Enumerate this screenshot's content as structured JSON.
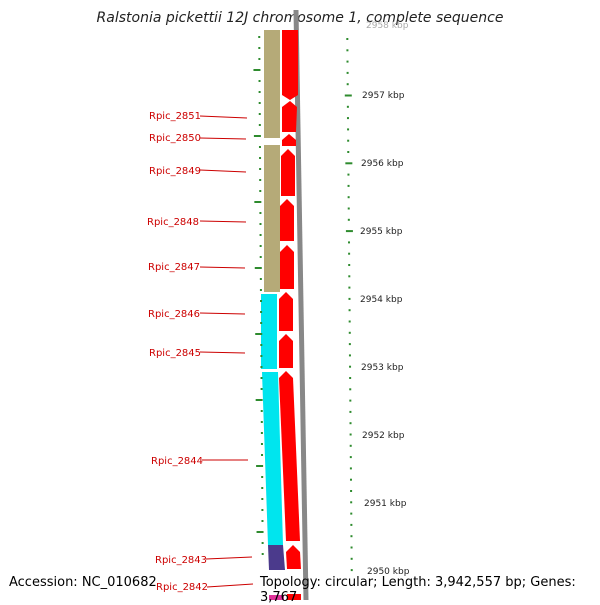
{
  "title": "Ralstonia pickettii 12J chromosome 1, complete sequence",
  "footer": {
    "accession": "Accession: NC_010682",
    "summary": "Topology: circular; Length: 3,942,557 bp; Genes: 3,767"
  },
  "ruler": {
    "unit": "kbp",
    "ticks": [
      "2958 kbp",
      "2957 kbp",
      "2956 kbp",
      "2955 kbp",
      "2954 kbp",
      "2953 kbp",
      "2952 kbp",
      "2951 kbp",
      "2950 kbp"
    ]
  },
  "genes": [
    {
      "label": "Rpic_2851",
      "category_color": "#b5aa78"
    },
    {
      "label": "Rpic_2850",
      "category_color": "#b5aa78"
    },
    {
      "label": "Rpic_2849",
      "category_color": "#b5aa78"
    },
    {
      "label": "Rpic_2848",
      "category_color": "#b5aa78"
    },
    {
      "label": "Rpic_2847",
      "category_color": "#b5aa78"
    },
    {
      "label": "Rpic_2846",
      "category_color": "#00e5ee"
    },
    {
      "label": "Rpic_2845",
      "category_color": "#00e5ee"
    },
    {
      "label": "Rpic_2844",
      "category_color": "#00e5ee"
    },
    {
      "label": "Rpic_2843",
      "category_color": "#4b3a8c"
    },
    {
      "label": "Rpic_2842",
      "category_color": "#e0339a"
    }
  ],
  "colors": {
    "cds": "#ff0000",
    "backbone": "#888888",
    "ruler": "#2e8b2e",
    "label": "#cc0000"
  }
}
